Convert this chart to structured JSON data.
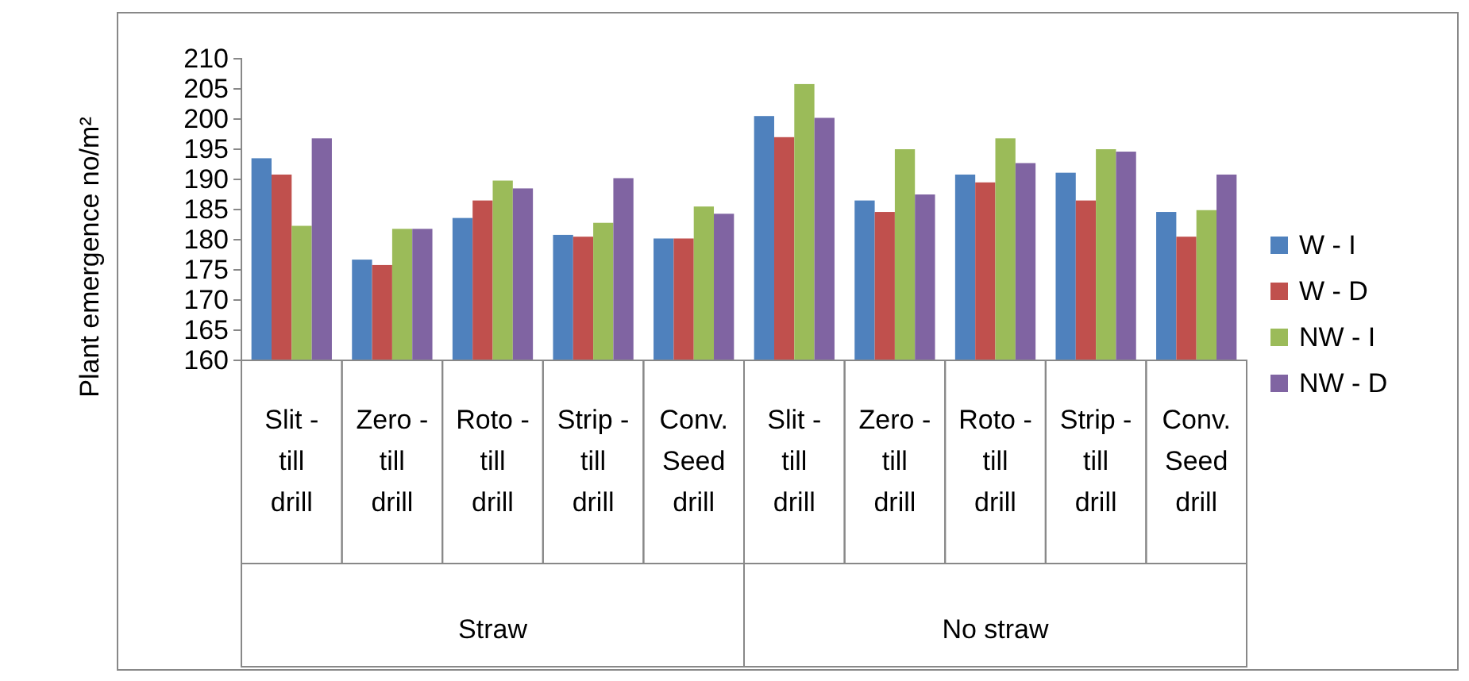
{
  "chart_data": {
    "type": "bar",
    "ylabel": "Plant emergence no/m²",
    "categories": [
      "Slit - till drill",
      "Zero - till drill",
      "Roto - till drill",
      "Strip - till drill",
      "Conv. Seed drill",
      "Slit - till drill",
      "Zero - till drill",
      "Roto - till drill",
      "Strip - till drill",
      "Conv. Seed drill"
    ],
    "annotations": [
      "Straw",
      "No straw"
    ],
    "series": [
      {
        "name": "W - I",
        "color": "#4f81bd",
        "values": [
          193.5,
          176.7,
          183.6,
          180.8,
          180.2,
          200.5,
          186.5,
          190.8,
          191.1,
          184.6
        ]
      },
      {
        "name": "W - D",
        "color": "#c0504d",
        "values": [
          190.8,
          175.8,
          186.5,
          180.5,
          180.2,
          197,
          184.6,
          189.5,
          186.5,
          180.5
        ]
      },
      {
        "name": "NW - I",
        "color": "#9bbb59",
        "values": [
          182.3,
          181.8,
          189.8,
          182.8,
          185.5,
          205.8,
          195,
          196.8,
          195,
          184.9
        ]
      },
      {
        "name": "NW - D",
        "color": "#8064a2",
        "values": [
          196.8,
          181.8,
          188.5,
          190.2,
          184.3,
          200.2,
          187.5,
          192.7,
          194.6,
          190.8
        ]
      }
    ],
    "ylim": [
      160,
      210
    ],
    "yticks": [
      160,
      165,
      170,
      175,
      180,
      185,
      190,
      195,
      200,
      205,
      210
    ],
    "legend": "right",
    "grid": false
  }
}
